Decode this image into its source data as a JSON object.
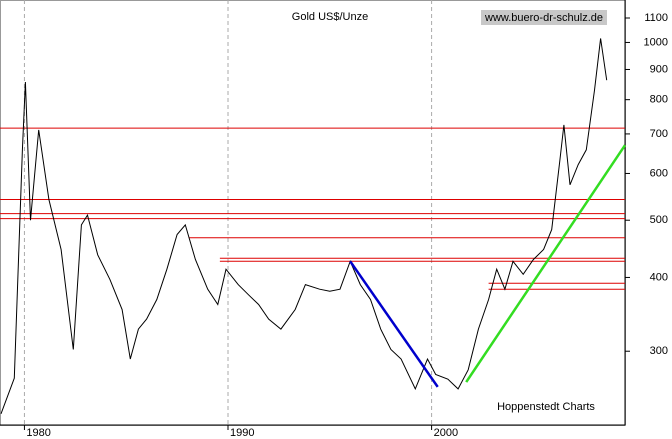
{
  "chart_data": {
    "type": "line",
    "title": "Gold US$/Unze",
    "source": "www.buero-dr-schulz.de",
    "credit": "Hoppenstedt Charts",
    "log_scale": true,
    "grid": true,
    "xlim": [
      1978.8,
      2009.5
    ],
    "ylim": [
      225,
      1180
    ],
    "xticks": [
      1980,
      1990,
      2000
    ],
    "yticks": [
      300,
      400,
      500,
      600,
      700,
      800,
      900,
      1000,
      1100
    ],
    "series": [
      {
        "color": "#000000",
        "x": [
          1978.85,
          1979.5,
          1979.9,
          1980.05,
          1980.3,
          1980.7,
          1981.2,
          1981.8,
          1982.4,
          1982.8,
          1983.1,
          1983.6,
          1984.2,
          1984.8,
          1985.2,
          1985.6,
          1986.0,
          1986.5,
          1987.0,
          1987.5,
          1987.9,
          1988.4,
          1989.0,
          1989.5,
          1989.9,
          1990.5,
          1991.0,
          1991.5,
          1992.0,
          1992.6,
          1993.3,
          1993.8,
          1994.5,
          1995.0,
          1995.5,
          1996.0,
          1996.5,
          1997.0,
          1997.5,
          1998.0,
          1998.5,
          1999.2,
          1999.8,
          2000.2,
          2000.8,
          2001.3,
          2001.8,
          2002.3,
          2002.8,
          2003.2,
          2003.6,
          2004.0,
          2004.5,
          2005.0,
          2005.5,
          2005.9,
          2006.3,
          2006.5,
          2006.8,
          2007.2,
          2007.6,
          2008.0,
          2008.3,
          2008.6
        ],
        "values": [
          235,
          270,
          658,
          857,
          500,
          711,
          542,
          446,
          302,
          491,
          510,
          437,
          397,
          353,
          291,
          327,
          340,
          367,
          413,
          473,
          491,
          429,
          382,
          360,
          413,
          389,
          374,
          360,
          340,
          327,
          353,
          389,
          382,
          379,
          382,
          426,
          389,
          367,
          327,
          302,
          291,
          259,
          291,
          274,
          269,
          259,
          279,
          327,
          367,
          413,
          382,
          426,
          405,
          429,
          446,
          482,
          632,
          725,
          574,
          621,
          658,
          830,
          1016,
          863
        ]
      }
    ],
    "levels": [
      {
        "value": 716,
        "from": 1978.8,
        "color": "#dd0000"
      },
      {
        "value": 542,
        "from": 1978.8,
        "color": "#dd0000"
      },
      {
        "value": 513,
        "from": 1978.8,
        "color": "#dd0000"
      },
      {
        "value": 503,
        "from": 1978.8,
        "color": "#dd0000"
      },
      {
        "value": 467,
        "from": 1988.1,
        "color": "#dd0000"
      },
      {
        "value": 431,
        "from": 1989.6,
        "color": "#dd0000"
      },
      {
        "value": 426,
        "from": 1989.6,
        "color": "#dd0000"
      },
      {
        "value": 391,
        "from": 2002.8,
        "color": "#dd0000"
      },
      {
        "value": 382,
        "from": 2002.8,
        "color": "#dd0000"
      }
    ],
    "trendlines": [
      {
        "color": "#0000cc",
        "x": [
          1996.0,
          2000.3
        ],
        "values": [
          426,
          261
        ]
      },
      {
        "color": "#33dd22",
        "x": [
          2001.7,
          2009.5
        ],
        "values": [
          266,
          670
        ]
      }
    ]
  }
}
